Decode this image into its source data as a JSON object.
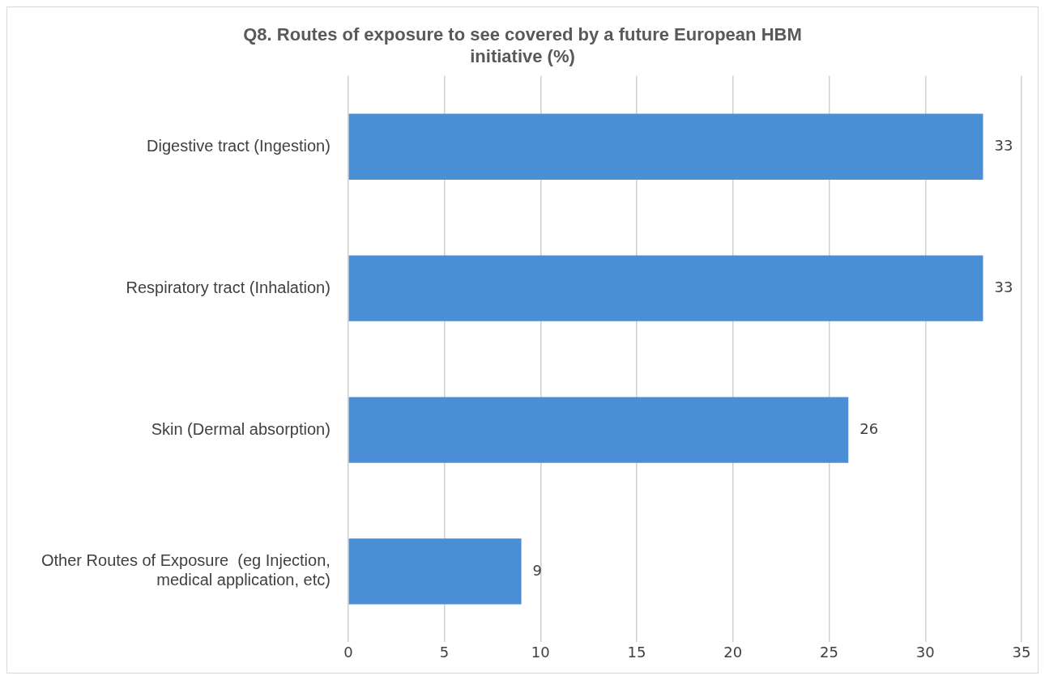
{
  "chart_data": {
    "type": "bar",
    "orientation": "horizontal",
    "title": "Q8. Routes of exposure to see covered by a future European HBM initiative (%)",
    "categories": [
      "Digestive tract (Ingestion)",
      "Respiratory tract (Inhalation)",
      "Skin (Dermal absorption)",
      "Other Routes of Exposure  (eg Injection, medical application, etc)"
    ],
    "values": [
      33,
      33,
      26,
      9
    ],
    "color": "#4a8fd6",
    "xlim": [
      0,
      35
    ],
    "xticks": [
      0,
      5,
      10,
      15,
      20,
      25,
      30,
      35
    ],
    "grid": "x",
    "data_labels": true,
    "legend": false
  }
}
